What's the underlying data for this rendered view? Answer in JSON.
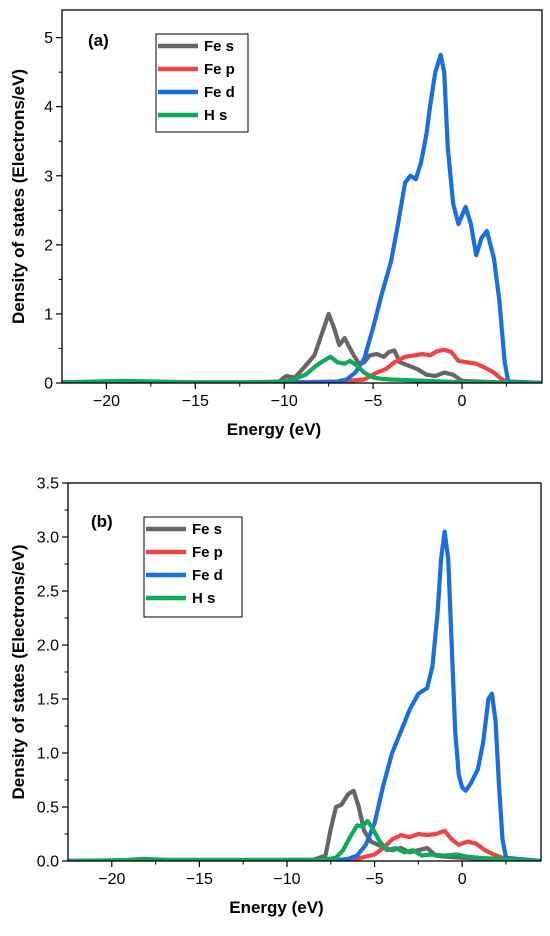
{
  "chart_data": [
    {
      "type": "line",
      "panel_label": "(a)",
      "xlabel": "Energy (eV)",
      "ylabel": "Density of states (Electrons/eV)",
      "xlim": [
        -22.5,
        4.5
      ],
      "ylim": [
        0,
        5.4
      ],
      "xticks": [
        -20,
        -15,
        -10,
        -5,
        0
      ],
      "xtick_labels": [
        "−20",
        "−15",
        "−10",
        "−5",
        "0"
      ],
      "yticks": [
        0,
        1,
        2,
        3,
        4,
        5
      ],
      "ytick_labels": [
        "0",
        "1",
        "2",
        "3",
        "4",
        "5"
      ],
      "grid": false,
      "legend_position": "top-left",
      "series": [
        {
          "name": "Fe s",
          "color": "#666666",
          "points": [
            [
              -22.5,
              0.01
            ],
            [
              -12,
              0.01
            ],
            [
              -10.3,
              0.02
            ],
            [
              -9.9,
              0.1
            ],
            [
              -9.4,
              0.08
            ],
            [
              -8.9,
              0.22
            ],
            [
              -8.3,
              0.4
            ],
            [
              -7.9,
              0.7
            ],
            [
              -7.5,
              1.0
            ],
            [
              -7.2,
              0.8
            ],
            [
              -6.9,
              0.55
            ],
            [
              -6.6,
              0.65
            ],
            [
              -6.2,
              0.45
            ],
            [
              -5.8,
              0.28
            ],
            [
              -5.5,
              0.3
            ],
            [
              -5.2,
              0.4
            ],
            [
              -4.8,
              0.42
            ],
            [
              -4.4,
              0.38
            ],
            [
              -4.1,
              0.45
            ],
            [
              -3.8,
              0.47
            ],
            [
              -3.5,
              0.3
            ],
            [
              -3.0,
              0.25
            ],
            [
              -2.5,
              0.2
            ],
            [
              -2.0,
              0.12
            ],
            [
              -1.5,
              0.1
            ],
            [
              -1.0,
              0.15
            ],
            [
              -0.5,
              0.12
            ],
            [
              0,
              0.03
            ],
            [
              1,
              0.02
            ],
            [
              2,
              0.01
            ],
            [
              4.5,
              0.0
            ]
          ]
        },
        {
          "name": "Fe p",
          "color": "#ee4444",
          "points": [
            [
              -22.5,
              0.0
            ],
            [
              -10,
              0.01
            ],
            [
              -7,
              0.02
            ],
            [
              -5.5,
              0.05
            ],
            [
              -4.8,
              0.15
            ],
            [
              -4.3,
              0.2
            ],
            [
              -3.8,
              0.3
            ],
            [
              -3.2,
              0.38
            ],
            [
              -2.7,
              0.4
            ],
            [
              -2.2,
              0.42
            ],
            [
              -1.8,
              0.4
            ],
            [
              -1.4,
              0.46
            ],
            [
              -1.0,
              0.48
            ],
            [
              -0.6,
              0.45
            ],
            [
              -0.2,
              0.32
            ],
            [
              0.3,
              0.3
            ],
            [
              0.8,
              0.28
            ],
            [
              1.3,
              0.22
            ],
            [
              1.8,
              0.15
            ],
            [
              2.2,
              0.06
            ],
            [
              2.5,
              0.02
            ],
            [
              4.5,
              0.0
            ]
          ]
        },
        {
          "name": "Fe d",
          "color": "#1a6fe0",
          "points": [
            [
              -22.5,
              0.0
            ],
            [
              -8,
              0.01
            ],
            [
              -7,
              0.02
            ],
            [
              -6.5,
              0.05
            ],
            [
              -6.0,
              0.15
            ],
            [
              -5.5,
              0.35
            ],
            [
              -5.0,
              0.8
            ],
            [
              -4.5,
              1.3
            ],
            [
              -4.0,
              1.75
            ],
            [
              -3.6,
              2.3
            ],
            [
              -3.2,
              2.9
            ],
            [
              -2.9,
              3.0
            ],
            [
              -2.6,
              2.95
            ],
            [
              -2.3,
              3.2
            ],
            [
              -2.0,
              3.6
            ],
            [
              -1.8,
              4.0
            ],
            [
              -1.5,
              4.5
            ],
            [
              -1.2,
              4.75
            ],
            [
              -1.0,
              4.5
            ],
            [
              -0.8,
              3.4
            ],
            [
              -0.5,
              2.6
            ],
            [
              -0.2,
              2.3
            ],
            [
              0.2,
              2.55
            ],
            [
              0.5,
              2.3
            ],
            [
              0.8,
              1.85
            ],
            [
              1.1,
              2.1
            ],
            [
              1.4,
              2.2
            ],
            [
              1.8,
              1.8
            ],
            [
              2.1,
              1.2
            ],
            [
              2.4,
              0.3
            ],
            [
              2.6,
              0.02
            ],
            [
              4.5,
              0.0
            ]
          ]
        },
        {
          "name": "H s",
          "color": "#11a85a",
          "points": [
            [
              -22.5,
              0.01
            ],
            [
              -19,
              0.03
            ],
            [
              -15,
              0.01
            ],
            [
              -11,
              0.01
            ],
            [
              -10,
              0.02
            ],
            [
              -9.5,
              0.05
            ],
            [
              -8.8,
              0.12
            ],
            [
              -8.2,
              0.25
            ],
            [
              -7.8,
              0.32
            ],
            [
              -7.4,
              0.38
            ],
            [
              -7.0,
              0.3
            ],
            [
              -6.6,
              0.28
            ],
            [
              -6.3,
              0.32
            ],
            [
              -5.9,
              0.25
            ],
            [
              -5.5,
              0.15
            ],
            [
              -5.0,
              0.08
            ],
            [
              -4.5,
              0.06
            ],
            [
              -4.0,
              0.05
            ],
            [
              -3.0,
              0.04
            ],
            [
              -2.0,
              0.03
            ],
            [
              0,
              0.01
            ],
            [
              4.5,
              0.0
            ]
          ]
        }
      ]
    },
    {
      "type": "line",
      "panel_label": "(b)",
      "xlabel": "Energy (eV)",
      "ylabel": "Density of states (Electrons/eV)",
      "xlim": [
        -22.5,
        4.5
      ],
      "ylim": [
        0,
        3.5
      ],
      "xticks": [
        -20,
        -15,
        -10,
        -5,
        0
      ],
      "xtick_labels": [
        "−20",
        "−15",
        "−10",
        "−5",
        "0"
      ],
      "yticks": [
        0.0,
        0.5,
        1.0,
        1.5,
        2.0,
        2.5,
        3.0,
        3.5
      ],
      "ytick_labels": [
        "0.0",
        "0.5",
        "1.0",
        "1.5",
        "2.0",
        "2.5",
        "3.0",
        "3.5"
      ],
      "grid": false,
      "legend_position": "top-left",
      "series": [
        {
          "name": "Fe s",
          "color": "#666666",
          "points": [
            [
              -22.5,
              0.0
            ],
            [
              -8.5,
              0.01
            ],
            [
              -7.8,
              0.05
            ],
            [
              -7.5,
              0.3
            ],
            [
              -7.2,
              0.5
            ],
            [
              -6.9,
              0.52
            ],
            [
              -6.5,
              0.62
            ],
            [
              -6.2,
              0.65
            ],
            [
              -5.9,
              0.5
            ],
            [
              -5.6,
              0.28
            ],
            [
              -5.2,
              0.18
            ],
            [
              -4.8,
              0.15
            ],
            [
              -4.4,
              0.12
            ],
            [
              -4.0,
              0.1
            ],
            [
              -3.5,
              0.12
            ],
            [
              -3.0,
              0.08
            ],
            [
              -2.5,
              0.1
            ],
            [
              -2.0,
              0.12
            ],
            [
              -1.5,
              0.05
            ],
            [
              -1.0,
              0.04
            ],
            [
              0,
              0.03
            ],
            [
              1.0,
              0.02
            ],
            [
              2.0,
              0.01
            ],
            [
              4.5,
              0.0
            ]
          ]
        },
        {
          "name": "Fe p",
          "color": "#ee4444",
          "points": [
            [
              -22.5,
              0.0
            ],
            [
              -8,
              0.0
            ],
            [
              -6,
              0.02
            ],
            [
              -5,
              0.06
            ],
            [
              -4.5,
              0.12
            ],
            [
              -4.0,
              0.2
            ],
            [
              -3.5,
              0.24
            ],
            [
              -3.0,
              0.22
            ],
            [
              -2.5,
              0.25
            ],
            [
              -2.0,
              0.24
            ],
            [
              -1.5,
              0.25
            ],
            [
              -1.0,
              0.28
            ],
            [
              -0.6,
              0.2
            ],
            [
              -0.2,
              0.15
            ],
            [
              0.3,
              0.18
            ],
            [
              0.8,
              0.16
            ],
            [
              1.3,
              0.1
            ],
            [
              1.8,
              0.06
            ],
            [
              2.3,
              0.03
            ],
            [
              2.8,
              0.0
            ],
            [
              4.5,
              0.0
            ]
          ]
        },
        {
          "name": "Fe d",
          "color": "#1a6fe0",
          "points": [
            [
              -22.5,
              0.0
            ],
            [
              -7.5,
              0.0
            ],
            [
              -6.5,
              0.02
            ],
            [
              -6.0,
              0.05
            ],
            [
              -5.5,
              0.15
            ],
            [
              -5.0,
              0.35
            ],
            [
              -4.5,
              0.7
            ],
            [
              -4.0,
              1.0
            ],
            [
              -3.5,
              1.2
            ],
            [
              -3.0,
              1.4
            ],
            [
              -2.5,
              1.55
            ],
            [
              -2.0,
              1.6
            ],
            [
              -1.7,
              1.8
            ],
            [
              -1.4,
              2.3
            ],
            [
              -1.2,
              2.8
            ],
            [
              -1.0,
              3.05
            ],
            [
              -0.8,
              2.8
            ],
            [
              -0.6,
              2.0
            ],
            [
              -0.4,
              1.2
            ],
            [
              -0.2,
              0.8
            ],
            [
              0,
              0.68
            ],
            [
              0.2,
              0.65
            ],
            [
              0.5,
              0.72
            ],
            [
              0.9,
              0.85
            ],
            [
              1.2,
              1.1
            ],
            [
              1.5,
              1.5
            ],
            [
              1.7,
              1.55
            ],
            [
              1.9,
              1.3
            ],
            [
              2.1,
              0.7
            ],
            [
              2.3,
              0.2
            ],
            [
              2.5,
              0.03
            ],
            [
              4.5,
              0.0
            ]
          ]
        },
        {
          "name": "H s",
          "color": "#11a85a",
          "points": [
            [
              -22.5,
              0.0
            ],
            [
              -19,
              0.01
            ],
            [
              -18.2,
              0.02
            ],
            [
              -17,
              0.01
            ],
            [
              -10,
              0.01
            ],
            [
              -8,
              0.01
            ],
            [
              -7.2,
              0.03
            ],
            [
              -6.8,
              0.1
            ],
            [
              -6.4,
              0.22
            ],
            [
              -6.0,
              0.33
            ],
            [
              -5.7,
              0.32
            ],
            [
              -5.4,
              0.37
            ],
            [
              -5.1,
              0.3
            ],
            [
              -4.7,
              0.18
            ],
            [
              -4.3,
              0.1
            ],
            [
              -3.8,
              0.12
            ],
            [
              -3.3,
              0.08
            ],
            [
              -2.8,
              0.1
            ],
            [
              -2.3,
              0.05
            ],
            [
              -1.8,
              0.06
            ],
            [
              -1.0,
              0.05
            ],
            [
              -0.3,
              0.06
            ],
            [
              0.3,
              0.04
            ],
            [
              1.0,
              0.03
            ],
            [
              2.0,
              0.02
            ],
            [
              4.5,
              0.0
            ]
          ]
        }
      ]
    }
  ]
}
